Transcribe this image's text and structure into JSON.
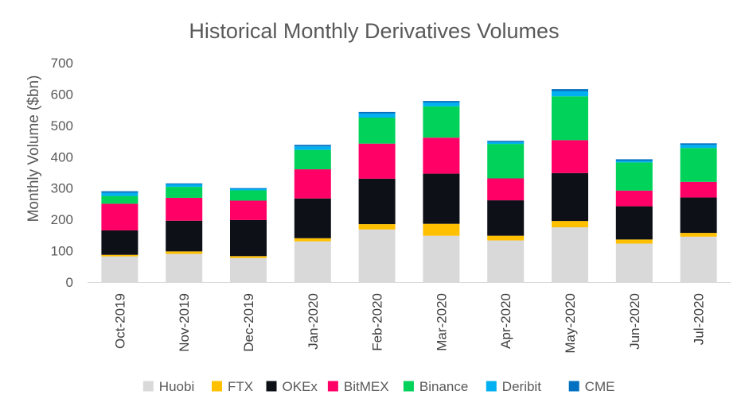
{
  "chart_data": {
    "type": "bar",
    "stacked": true,
    "title": "Historical Monthly Derivatives Volumes",
    "xlabel": "",
    "ylabel": "Monthly Volume ($bn)",
    "ylim": [
      0,
      700
    ],
    "yticks": [
      0,
      100,
      200,
      300,
      400,
      500,
      600,
      700
    ],
    "grid": false,
    "legend_position": "bottom",
    "categories": [
      "Oct-2019",
      "Nov-2019",
      "Dec-2019",
      "Jan-2020",
      "Feb-2020",
      "Mar-2020",
      "Apr-2020",
      "May-2020",
      "Jun-2020",
      "Jul-2020"
    ],
    "series": [
      {
        "name": "Huobi",
        "color": "#d9d9d9",
        "values": [
          82,
          90,
          77,
          130,
          168,
          148,
          133,
          175,
          123,
          145
        ]
      },
      {
        "name": "FTX",
        "color": "#ffc000",
        "values": [
          5,
          8,
          6,
          10,
          17,
          38,
          15,
          20,
          13,
          12
        ]
      },
      {
        "name": "OKEx",
        "color": "#0d1017",
        "values": [
          78,
          98,
          115,
          127,
          145,
          160,
          113,
          153,
          106,
          113
        ]
      },
      {
        "name": "BitMEX",
        "color": "#ff0066",
        "values": [
          85,
          73,
          62,
          93,
          112,
          115,
          70,
          105,
          50,
          50
        ]
      },
      {
        "name": "Binance",
        "color": "#00d25a",
        "values": [
          25,
          35,
          33,
          62,
          83,
          100,
          110,
          140,
          90,
          108
        ]
      },
      {
        "name": "Deribit",
        "color": "#00b0f0",
        "values": [
          10,
          8,
          5,
          11,
          13,
          12,
          6,
          16,
          5,
          10
        ]
      },
      {
        "name": "CME",
        "color": "#0070c0",
        "values": [
          5,
          3,
          2,
          5,
          5,
          5,
          4,
          7,
          5,
          5
        ]
      }
    ]
  }
}
